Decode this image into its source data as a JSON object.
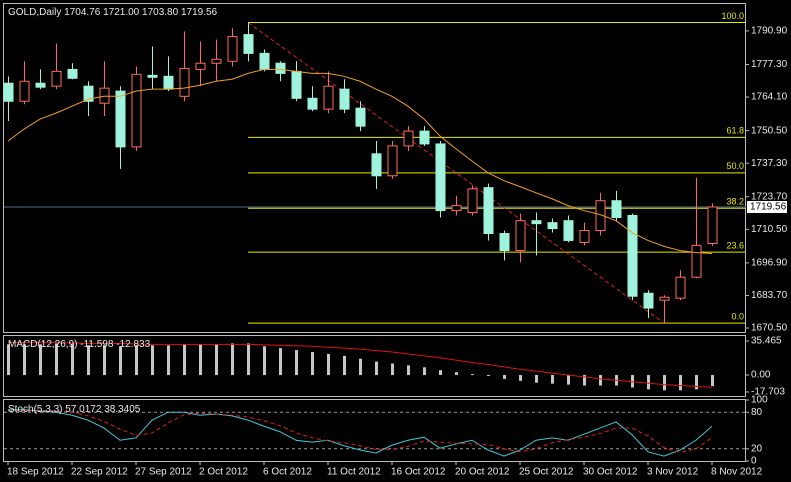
{
  "chart_data": [
    {
      "type": "candlestick",
      "title": "GOLD,Daily",
      "categories": [
        "18 Sep 2012",
        null,
        null,
        null,
        "22 Sep 2012",
        null,
        null,
        null,
        "27 Sep 2012",
        null,
        null,
        null,
        "2 Oct 2012",
        null,
        null,
        null,
        "6 Oct 2012",
        null,
        null,
        null,
        "11 Oct 2012",
        null,
        null,
        null,
        "16 Oct 2012",
        null,
        null,
        null,
        "20 Oct 2012",
        null,
        null,
        null,
        "25 Oct 2012",
        null,
        null,
        null,
        "30 Oct 2012",
        null,
        null,
        null,
        "3 Nov 2012",
        null,
        null,
        null,
        "8 Nov 2012"
      ],
      "open": [
        1769.7,
        1762.4,
        1769.7,
        1768.5,
        1775.3,
        1768.5,
        1761.6,
        1766.5,
        1743.9,
        1772.9,
        1772.5,
        1764.4,
        1775.3,
        1777.8,
        1778.6,
        1789.4,
        1781.8,
        1777.8,
        1774.5,
        1763.6,
        1759.2,
        1767.3,
        1759.6,
        1741.1,
        1732.2,
        1744.3,
        1750.3,
        1745.1,
        1718.1,
        1717.3,
        1727.4,
        1708.8,
        1701.9,
        1714.0,
        1713.2,
        1714.0,
        1705.2,
        1710.0,
        1722.1,
        1716.1,
        1684.6,
        1681.8,
        1682.6,
        1691.1,
        1704.76
      ],
      "high": [
        1772.5,
        1778.6,
        1775.3,
        1785.8,
        1777.8,
        1770.5,
        1778.6,
        1768.5,
        1776.5,
        1784.6,
        1780.6,
        1790.7,
        1786.6,
        1787.4,
        1792.0,
        1794.3,
        1783.4,
        1778.6,
        1778.6,
        1768.5,
        1774.5,
        1771.3,
        1762.4,
        1746.3,
        1746.3,
        1752.3,
        1752.3,
        1746.3,
        1724.1,
        1728.2,
        1729.0,
        1710.0,
        1716.9,
        1717.3,
        1714.9,
        1716.1,
        1713.2,
        1725.3,
        1726.1,
        1716.9,
        1685.8,
        1683.8,
        1693.9,
        1731.4,
        1721.0
      ],
      "low": [
        1754.4,
        1761.2,
        1767.3,
        1767.3,
        1771.3,
        1756.4,
        1756.4,
        1735.0,
        1742.3,
        1767.3,
        1766.5,
        1762.4,
        1768.5,
        1770.5,
        1776.5,
        1778.6,
        1774.5,
        1770.5,
        1762.4,
        1758.4,
        1757.6,
        1757.6,
        1750.3,
        1726.9,
        1731.0,
        1742.3,
        1744.3,
        1715.3,
        1716.1,
        1716.1,
        1706.0,
        1697.9,
        1697.1,
        1699.9,
        1709.2,
        1705.2,
        1704.0,
        1708.0,
        1714.0,
        1681.8,
        1674.5,
        1672.5,
        1681.8,
        1690.7,
        1703.8
      ],
      "close": [
        1762.4,
        1770.5,
        1768.1,
        1774.5,
        1771.7,
        1762.4,
        1767.7,
        1743.9,
        1773.3,
        1772.1,
        1767.3,
        1775.7,
        1777.8,
        1779.4,
        1788.6,
        1781.8,
        1775.3,
        1773.7,
        1763.6,
        1759.2,
        1768.5,
        1759.2,
        1752.3,
        1732.2,
        1744.3,
        1750.3,
        1745.1,
        1718.1,
        1720.1,
        1726.9,
        1708.8,
        1701.9,
        1714.0,
        1712.8,
        1710.8,
        1706.0,
        1710.0,
        1722.1,
        1715.3,
        1683.4,
        1678.6,
        1683.0,
        1691.1,
        1704.0,
        1719.56
      ],
      "header_labels": {
        "high": "1721.00",
        "low": "1703.80"
      },
      "up_color": "#ff6b5a",
      "down_color": "#9ff3dd",
      "bid_color": "#4f6f8f",
      "ma": {
        "color": "#f0a020",
        "values": [
          1746.3,
          1751.1,
          1755.2,
          1757.6,
          1760.4,
          1763.2,
          1764.4,
          1764.4,
          1766.5,
          1767.3,
          1767.3,
          1767.7,
          1768.9,
          1770.5,
          1771.3,
          1773.7,
          1775.3,
          1775.3,
          1774.5,
          1773.7,
          1773.7,
          1772.5,
          1770.5,
          1767.3,
          1764.4,
          1760.4,
          1755.2,
          1748.3,
          1743.1,
          1738.2,
          1733.4,
          1730.2,
          1727.8,
          1725.3,
          1722.9,
          1720.1,
          1718.1,
          1716.5,
          1714.0,
          1709.2,
          1706.0,
          1703.6,
          1701.9,
          1701.1,
          1700.7
        ]
      },
      "fib": {
        "high_index": 15,
        "low_index": 41,
        "color": "#e8e800",
        "trend_color": "#e02020",
        "levels": [
          {
            "value": 100,
            "label": "100.0"
          },
          {
            "value": 61.8,
            "label": "61.8"
          },
          {
            "value": 50,
            "label": "50.0"
          },
          {
            "value": 38.2,
            "label": "38.2"
          },
          {
            "value": 23.6,
            "label": "23.6"
          },
          {
            "value": 0,
            "label": "0.0"
          }
        ]
      },
      "ylim": [
        1668.9,
        1801.4
      ],
      "yticks": [
        {
          "value": 1790.9,
          "label": "1790.90"
        },
        {
          "value": 1777.3,
          "label": "1777.30"
        },
        {
          "value": 1764.1,
          "label": "1764.10"
        },
        {
          "value": 1750.5,
          "label": "1750.50"
        },
        {
          "value": 1737.3,
          "label": "1737.30"
        },
        {
          "value": 1723.7,
          "label": "1723.70"
        },
        {
          "value": 1710.5,
          "label": "1710.50"
        },
        {
          "value": 1696.9,
          "label": "1696.90"
        },
        {
          "value": 1683.7,
          "label": "1683.70"
        },
        {
          "value": 1670.5,
          "label": "1670.50"
        }
      ]
    },
    {
      "type": "macd",
      "title": "MACD(12,26,9)",
      "histogram": {
        "color": "#c8c8c8",
        "values": [
          32,
          32,
          32,
          33,
          32,
          31,
          31,
          30,
          31,
          31,
          31,
          32,
          32,
          32,
          33,
          33,
          30,
          28,
          26,
          24,
          22,
          20,
          17,
          14,
          12,
          10,
          8,
          5,
          3,
          1,
          -1,
          -4,
          -6,
          -8,
          -9,
          -10,
          -11,
          -11,
          -11,
          -13,
          -15,
          -16,
          -16,
          -15,
          -11.598
        ]
      },
      "signal": {
        "color": "#e01010",
        "values": [
          34,
          34,
          34,
          34,
          33.5,
          33,
          33,
          33,
          32.5,
          32,
          32,
          32,
          32,
          32,
          32,
          32,
          31.5,
          31,
          30.5,
          30,
          29,
          28,
          27,
          25.5,
          24,
          22,
          20,
          18,
          15.5,
          13,
          11,
          8.5,
          6,
          4,
          2,
          0,
          -2,
          -4,
          -5.5,
          -7,
          -8.5,
          -10,
          -11,
          -12,
          -12.833
        ]
      },
      "ylim": [
        -21.9,
        40.7
      ],
      "yticks": [
        35.465,
        {
          "value": 0,
          "label": "0.00"
        },
        -17.703
      ]
    },
    {
      "type": "stochastic",
      "title": "Stoch(5,3,3)",
      "main": {
        "color": "#3cc8d8",
        "values": [
          84,
          84,
          82,
          80,
          75,
          67,
          54,
          34,
          38,
          67,
          80,
          80,
          75,
          77,
          74,
          67,
          57,
          48,
          34,
          31,
          34,
          25,
          18,
          13,
          26,
          34,
          39,
          21,
          28,
          34,
          18,
          8,
          18,
          34,
          38,
          34,
          44,
          54,
          64,
          43,
          15,
          8,
          18,
          34,
          57.0172
        ]
      },
      "signal": {
        "color": "#e02020",
        "values": [
          82,
          83,
          83,
          82,
          80,
          74,
          65,
          52,
          42,
          46,
          62,
          76,
          78,
          77,
          75,
          72,
          66,
          58,
          46,
          38,
          33,
          30,
          25,
          19,
          19,
          24,
          33,
          31,
          29,
          28,
          27,
          20,
          15,
          20,
          30,
          35,
          39,
          45,
          54,
          54,
          41,
          22,
          14,
          20,
          38.3405
        ]
      },
      "levels": [
        80,
        20
      ],
      "ylim": [
        0,
        100
      ],
      "yticks": [
        100,
        80,
        20,
        0
      ]
    }
  ]
}
